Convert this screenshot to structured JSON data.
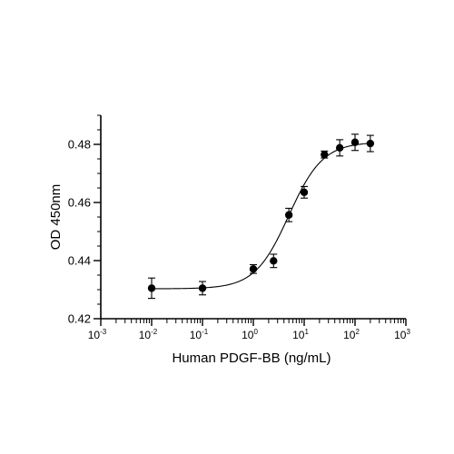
{
  "chart_data": {
    "type": "scatter",
    "xlabel": "Human PDGF-BB (ng/mL)",
    "ylabel": "OD 450nm",
    "x_scale": "log",
    "xlim": [
      0.001,
      1000
    ],
    "ylim": [
      0.42,
      0.49
    ],
    "x_ticks": [
      {
        "base": "10",
        "exp": "-3",
        "value": 0.001
      },
      {
        "base": "10",
        "exp": "-2",
        "value": 0.01
      },
      {
        "base": "10",
        "exp": "-1",
        "value": 0.1
      },
      {
        "base": "10",
        "exp": "0",
        "value": 1
      },
      {
        "base": "10",
        "exp": "1",
        "value": 10
      },
      {
        "base": "10",
        "exp": "2",
        "value": 100
      },
      {
        "base": "10",
        "exp": "3",
        "value": 1000
      }
    ],
    "y_ticks": [
      {
        "label": "0.42",
        "value": 0.42
      },
      {
        "label": "0.44",
        "value": 0.44
      },
      {
        "label": "0.46",
        "value": 0.46
      },
      {
        "label": "0.48",
        "value": 0.48
      }
    ],
    "grid": false,
    "points": [
      {
        "x": 0.01,
        "y": 0.4305,
        "err": 0.0035
      },
      {
        "x": 0.1,
        "y": 0.4305,
        "err": 0.0023
      },
      {
        "x": 1,
        "y": 0.4371,
        "err": 0.0015
      },
      {
        "x": 2.5,
        "y": 0.4399,
        "err": 0.0023
      },
      {
        "x": 5,
        "y": 0.4557,
        "err": 0.0023
      },
      {
        "x": 10,
        "y": 0.4635,
        "err": 0.002
      },
      {
        "x": 25,
        "y": 0.4765,
        "err": 0.0012
      },
      {
        "x": 50,
        "y": 0.4788,
        "err": 0.0028
      },
      {
        "x": 100,
        "y": 0.4807,
        "err": 0.0028
      },
      {
        "x": 200,
        "y": 0.4803,
        "err": 0.0028
      }
    ],
    "fit_curve": {
      "bottom": 0.4303,
      "top": 0.4808,
      "ec50": 5.0,
      "hill": 1.3
    }
  }
}
